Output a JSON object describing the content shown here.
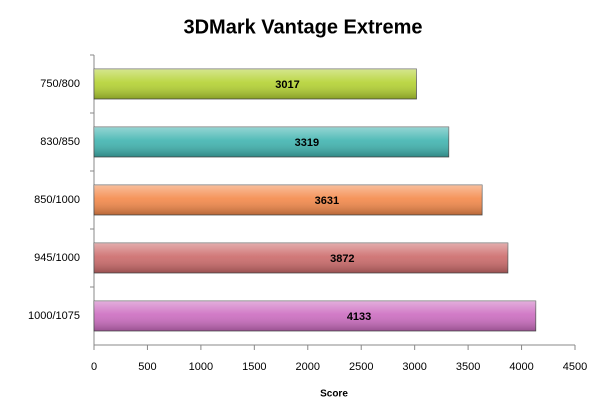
{
  "chart_data": {
    "type": "bar",
    "orientation": "horizontal",
    "title": "3DMark Vantage Extreme",
    "x_label": "Score",
    "categories": [
      "750/800",
      "830/850",
      "850/1000",
      "945/1000",
      "1000/1075"
    ],
    "values": [
      3017,
      3319,
      3631,
      3872,
      4133
    ],
    "colors": [
      "#b4d232",
      "#40b4b0",
      "#f4894a",
      "#cc6a6a",
      "#cc6cc0"
    ],
    "xlim": [
      0,
      4500
    ],
    "xticks": [
      0,
      500,
      1000,
      1500,
      2000,
      2500,
      3000,
      3500,
      4000,
      4500
    ],
    "grid": false
  }
}
